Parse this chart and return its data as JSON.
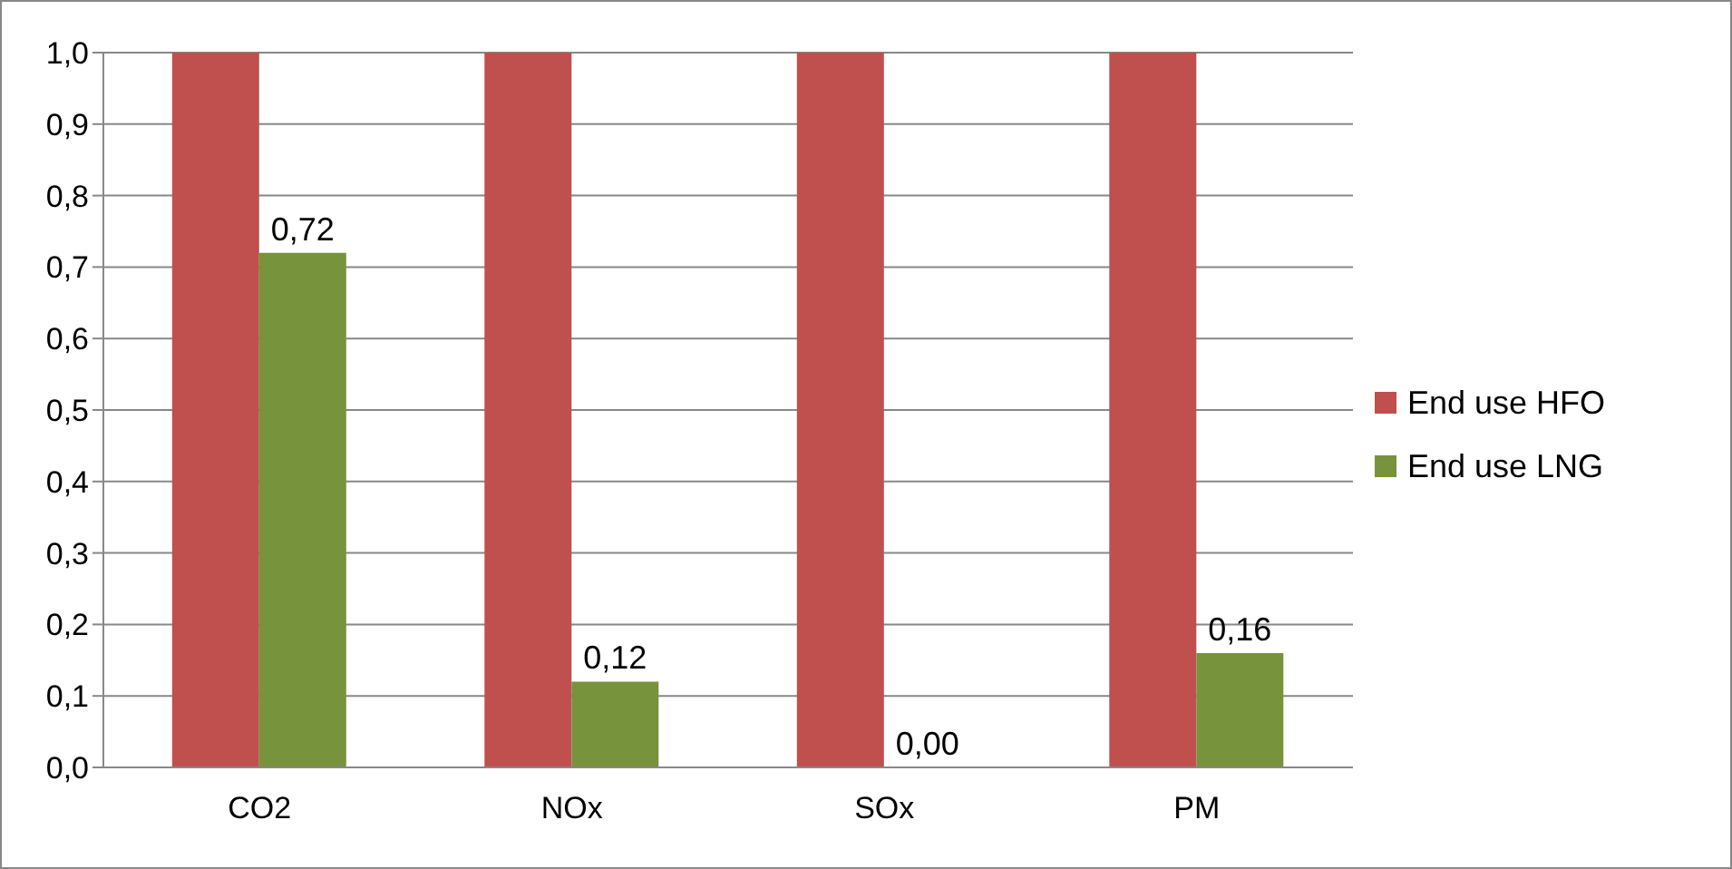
{
  "chart_data": {
    "type": "bar",
    "categories": [
      "CO2",
      "NOx",
      "SOx",
      "PM"
    ],
    "series": [
      {
        "name": "End use HFO",
        "color": "#c0504d",
        "values": [
          1,
          1,
          1,
          1
        ]
      },
      {
        "name": "End use LNG",
        "color": "#77933c",
        "values": [
          0.72,
          0.12,
          0.0,
          0.16
        ],
        "value_labels": [
          "0,72",
          "0,12",
          "0,00",
          "0,16"
        ]
      }
    ],
    "ylim": [
      0,
      1
    ],
    "yticks": [
      {
        "value": 0,
        "label": "0,0"
      },
      {
        "value": 0.1,
        "label": "0,1"
      },
      {
        "value": 0.2,
        "label": "0,2"
      },
      {
        "value": 0.3,
        "label": "0,3"
      },
      {
        "value": 0.4,
        "label": "0,4"
      },
      {
        "value": 0.5,
        "label": "0,5"
      },
      {
        "value": 0.6,
        "label": "0,6"
      },
      {
        "value": 0.7,
        "label": "0,7"
      },
      {
        "value": 0.8,
        "label": "0,8"
      },
      {
        "value": 0.9,
        "label": "0,9"
      },
      {
        "value": 1,
        "label": "1,0"
      }
    ],
    "grid": "y",
    "legend": "right"
  }
}
